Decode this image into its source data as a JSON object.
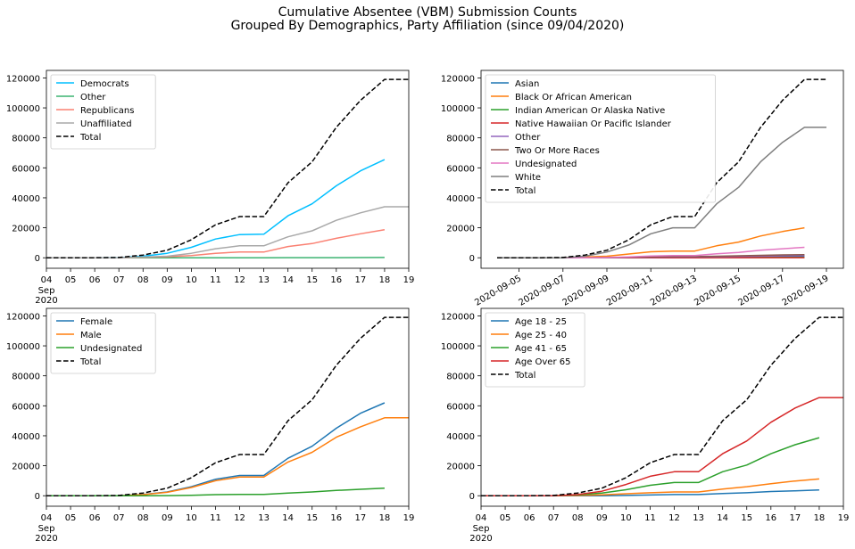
{
  "figure": {
    "title_line1": "Cumulative Absentee (VBM) Submission Counts",
    "title_line2": "Grouped By Demographics, Party Affiliation (since 09/04/2020)"
  },
  "chart_data": [
    {
      "type": "line",
      "x": [
        "04",
        "05",
        "06",
        "07",
        "08",
        "09",
        "10",
        "11",
        "12",
        "13",
        "14",
        "15",
        "16",
        "17",
        "18",
        "19"
      ],
      "x_sublabel": [
        "Sep",
        "2020"
      ],
      "ylim": [
        -7000,
        125000
      ],
      "yticks": [
        0,
        20000,
        40000,
        60000,
        80000,
        100000,
        120000
      ],
      "legend_loc": "upper left",
      "series": [
        {
          "name": "Democrats",
          "color": "#00bfff",
          "dash": "solid",
          "values": [
            0,
            0,
            0,
            100,
            1000,
            3000,
            7000,
            12500,
            15500,
            15700,
            28000,
            36000,
            48000,
            58000,
            65500,
            null
          ]
        },
        {
          "name": "Other",
          "color": "#3cb371",
          "dash": "solid",
          "values": [
            0,
            0,
            0,
            0,
            0,
            0,
            0,
            0,
            0,
            0,
            50,
            80,
            100,
            150,
            200,
            null
          ]
        },
        {
          "name": "Republicans",
          "color": "#fa8072",
          "dash": "solid",
          "values": [
            0,
            0,
            0,
            0,
            300,
            700,
            1500,
            3000,
            3800,
            3800,
            7500,
            9500,
            13000,
            16000,
            18700,
            null
          ]
        },
        {
          "name": "Unaffiliated",
          "color": "#a9a9a9",
          "dash": "solid",
          "values": [
            0,
            0,
            0,
            0,
            500,
            1000,
            3000,
            6000,
            8000,
            8000,
            14000,
            18000,
            25000,
            30000,
            34000,
            34000
          ]
        },
        {
          "name": "Total",
          "color": "#000000",
          "dash": "dashed",
          "values": [
            0,
            0,
            0,
            200,
            1800,
            5000,
            12000,
            22000,
            27500,
            27500,
            50000,
            64000,
            87000,
            105000,
            119000,
            119000
          ]
        }
      ]
    },
    {
      "type": "line",
      "x": [
        "2020-09-04",
        "2020-09-05",
        "2020-09-06",
        "2020-09-07",
        "2020-09-08",
        "2020-09-09",
        "2020-09-10",
        "2020-09-11",
        "2020-09-12",
        "2020-09-13",
        "2020-09-14",
        "2020-09-15",
        "2020-09-16",
        "2020-09-17",
        "2020-09-18",
        "2020-09-19"
      ],
      "xtick_labels": [
        "2020-09-05",
        "2020-09-07",
        "2020-09-09",
        "2020-09-11",
        "2020-09-13",
        "2020-09-15",
        "2020-09-17",
        "2020-09-19"
      ],
      "ylim": [
        -7000,
        125000
      ],
      "yticks": [
        0,
        20000,
        40000,
        60000,
        80000,
        100000,
        120000
      ],
      "legend_loc": "upper left",
      "series": [
        {
          "name": "Asian",
          "color": "#1f77b4",
          "dash": "solid",
          "values": [
            0,
            0,
            0,
            0,
            0,
            0,
            0,
            200,
            300,
            300,
            500,
            700,
            900,
            1000,
            1100,
            null
          ]
        },
        {
          "name": "Black Or African American",
          "color": "#ff7f0e",
          "dash": "solid",
          "values": [
            0,
            0,
            0,
            0,
            500,
            1000,
            2500,
            4000,
            4500,
            4500,
            8000,
            10500,
            14500,
            17500,
            20000,
            null
          ]
        },
        {
          "name": "Indian American Or Alaska Native",
          "color": "#2ca02c",
          "dash": "solid",
          "values": [
            0,
            0,
            0,
            0,
            0,
            0,
            0,
            50,
            80,
            80,
            120,
            150,
            200,
            250,
            300,
            null
          ]
        },
        {
          "name": "Native Hawaiian Or Pacific Islander",
          "color": "#d62728",
          "dash": "solid",
          "values": [
            0,
            0,
            0,
            0,
            0,
            0,
            0,
            20,
            30,
            30,
            50,
            60,
            80,
            90,
            100,
            null
          ]
        },
        {
          "name": "Other",
          "color": "#9467bd",
          "dash": "solid",
          "values": [
            0,
            0,
            0,
            0,
            0,
            0,
            200,
            400,
            500,
            500,
            700,
            900,
            1100,
            1300,
            1500,
            null
          ]
        },
        {
          "name": "Two Or More Races",
          "color": "#8c564b",
          "dash": "solid",
          "values": [
            0,
            0,
            0,
            0,
            0,
            100,
            300,
            600,
            800,
            800,
            1000,
            1300,
            1600,
            1900,
            2100,
            null
          ]
        },
        {
          "name": "Undesignated",
          "color": "#e377c2",
          "dash": "solid",
          "values": [
            0,
            0,
            0,
            0,
            0,
            200,
            600,
            1200,
            1500,
            1500,
            2700,
            3600,
            5000,
            6000,
            7000,
            null
          ]
        },
        {
          "name": "White",
          "color": "#7f7f7f",
          "dash": "solid",
          "values": [
            0,
            0,
            0,
            0,
            1000,
            3800,
            8500,
            16000,
            20000,
            20000,
            36000,
            47000,
            64000,
            77000,
            87000,
            87000
          ]
        },
        {
          "name": "Total",
          "color": "#000000",
          "dash": "dashed",
          "values": [
            0,
            0,
            0,
            200,
            1800,
            5000,
            12000,
            22000,
            27500,
            27500,
            50000,
            64000,
            87000,
            105000,
            119000,
            119000
          ]
        }
      ]
    },
    {
      "type": "line",
      "x": [
        "04",
        "05",
        "06",
        "07",
        "08",
        "09",
        "10",
        "11",
        "12",
        "13",
        "14",
        "15",
        "16",
        "17",
        "18",
        "19"
      ],
      "x_sublabel": [
        "Sep",
        "2020"
      ],
      "ylim": [
        -7000,
        125000
      ],
      "yticks": [
        0,
        20000,
        40000,
        60000,
        80000,
        100000,
        120000
      ],
      "legend_loc": "upper left",
      "series": [
        {
          "name": "Female",
          "color": "#1f77b4",
          "dash": "solid",
          "values": [
            0,
            0,
            0,
            0,
            800,
            2500,
            6000,
            11000,
            13500,
            13500,
            25000,
            33000,
            45000,
            55000,
            62000,
            null
          ]
        },
        {
          "name": "Male",
          "color": "#ff7f0e",
          "dash": "solid",
          "values": [
            0,
            0,
            0,
            0,
            700,
            2300,
            5500,
            10000,
            12500,
            12500,
            22500,
            29000,
            39000,
            46000,
            52000,
            52000
          ]
        },
        {
          "name": "Undesignated",
          "color": "#2ca02c",
          "dash": "solid",
          "values": [
            0,
            0,
            0,
            0,
            0,
            100,
            300,
            700,
            900,
            900,
            1800,
            2500,
            3500,
            4300,
            5000,
            null
          ]
        },
        {
          "name": "Total",
          "color": "#000000",
          "dash": "dashed",
          "values": [
            0,
            0,
            0,
            200,
            1800,
            5000,
            12000,
            22000,
            27500,
            27500,
            50000,
            64000,
            87000,
            105000,
            119000,
            119000
          ]
        }
      ]
    },
    {
      "type": "line",
      "x": [
        "04",
        "05",
        "06",
        "07",
        "08",
        "09",
        "10",
        "11",
        "12",
        "13",
        "14",
        "15",
        "16",
        "17",
        "18",
        "19"
      ],
      "x_sublabel": [
        "Sep",
        "2020"
      ],
      "ylim": [
        -7000,
        125000
      ],
      "yticks": [
        0,
        20000,
        40000,
        60000,
        80000,
        100000,
        120000
      ],
      "legend_loc": "upper left",
      "series": [
        {
          "name": "Age 18 - 25",
          "color": "#1f77b4",
          "dash": "solid",
          "values": [
            0,
            0,
            0,
            0,
            0,
            0,
            200,
            500,
            800,
            800,
            1500,
            2000,
            2800,
            3300,
            3800,
            null
          ]
        },
        {
          "name": "Age 25 - 40",
          "color": "#ff7f0e",
          "dash": "solid",
          "values": [
            0,
            0,
            0,
            0,
            200,
            600,
            1300,
            2000,
            2500,
            2500,
            4500,
            6000,
            8000,
            9800,
            11200,
            null
          ]
        },
        {
          "name": "Age 41 - 65",
          "color": "#2ca02c",
          "dash": "solid",
          "values": [
            0,
            0,
            0,
            0,
            600,
            1800,
            4000,
            7000,
            8800,
            8800,
            16000,
            20500,
            28000,
            34000,
            38700,
            null
          ]
        },
        {
          "name": "Age Over 65",
          "color": "#d62728",
          "dash": "solid",
          "values": [
            0,
            0,
            0,
            0,
            800,
            3000,
            7500,
            13000,
            16000,
            16000,
            28000,
            36500,
            49000,
            58500,
            65500,
            65500
          ]
        },
        {
          "name": "Total",
          "color": "#000000",
          "dash": "dashed",
          "values": [
            0,
            0,
            0,
            200,
            1800,
            5000,
            12000,
            22000,
            27500,
            27500,
            50000,
            64000,
            87000,
            105000,
            119000,
            119000
          ]
        }
      ]
    }
  ]
}
